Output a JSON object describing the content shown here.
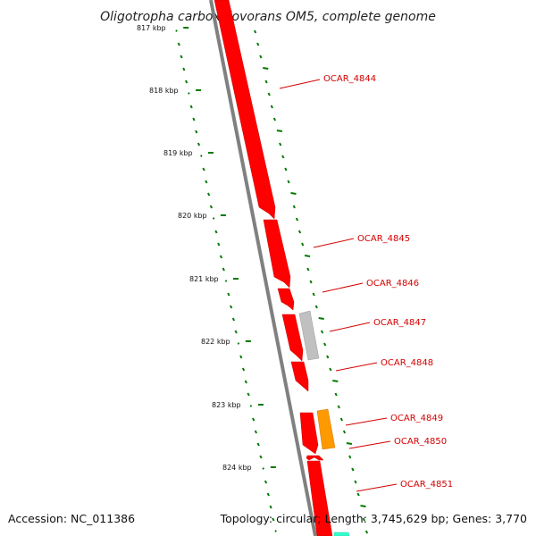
{
  "title": "Oligotropha carboxidovorans OM5, complete genome",
  "ticks": [
    "817 kbp",
    "818 kbp",
    "819 kbp",
    "820 kbp",
    "821 kbp",
    "822 kbp",
    "823 kbp",
    "824 kbp"
  ],
  "genes": [
    "OCAR_4844",
    "OCAR_4845",
    "OCAR_4846",
    "OCAR_4847",
    "OCAR_4848",
    "OCAR_4849",
    "OCAR_4850",
    "OCAR_4851"
  ],
  "footer": {
    "accession": "Accession: NC_011386",
    "topology": "Topology: circular; Length: 3,745,629 bp; Genes: 3,770"
  },
  "colors": {
    "gene_red": "#ff0000",
    "gene_gray": "#c0c0c0",
    "gene_orange": "#ff9900",
    "gene_teal": "#33ffcc",
    "backbone": "#808080",
    "tick_green": "#007a00",
    "label_red": "#d40000"
  }
}
